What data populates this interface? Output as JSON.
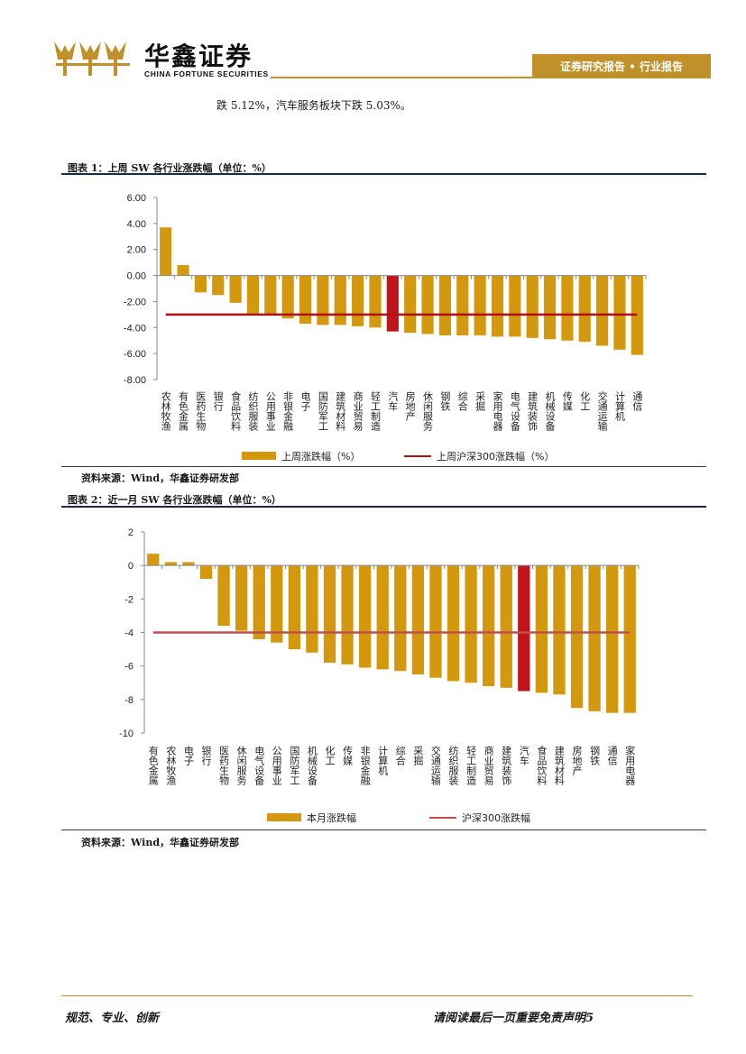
{
  "header": {
    "brand_cn": "华鑫证券",
    "brand_en": "CHINA FORTUNE SECURITIES",
    "tab_label": "证券研究报告 • 行业报告"
  },
  "intro_text": "跌 5.12%，汽车服务板块下跌 5.03%。",
  "figure1": {
    "title": "图表 1：上周 SW 各行业涨跌幅（单位：%）",
    "source": "资料来源：Wind，华鑫证券研发部"
  },
  "figure2": {
    "title": "图表 2：近一月 SW 各行业涨跌幅（单位：%）",
    "source": "资料来源：Wind，华鑫证券研发部"
  },
  "footer": {
    "left": "规范、专业、创新",
    "right": "请阅读最后一页重要免责声明",
    "page": "5"
  },
  "colors": {
    "bar": "#d4980f",
    "highlight": "#c0151b",
    "index_line_1": "#b01015",
    "index_line_2": "#c0504d",
    "accent": "#c0902a"
  },
  "chart_data": [
    {
      "type": "bar",
      "title": "上周 SW 各行业涨跌幅（单位：%）",
      "categories": [
        "农林牧渔",
        "有色金属",
        "医药生物",
        "银行",
        "食品饮料",
        "纺织服装",
        "公用事业",
        "非银金融",
        "电子",
        "国防军工",
        "建筑材料",
        "商业贸易",
        "轻工制造",
        "汽车",
        "房地产",
        "休闲服务",
        "钢铁",
        "综合",
        "采掘",
        "家用电器",
        "电气设备",
        "建筑装饰",
        "机械设备",
        "传媒",
        "化工",
        "交通运输",
        "计算机",
        "通信"
      ],
      "series": [
        {
          "name": "上周涨跌幅（%）",
          "type": "bar",
          "values": [
            3.7,
            0.8,
            -1.3,
            -1.5,
            -2.1,
            -3.0,
            -3.0,
            -3.3,
            -3.7,
            -3.8,
            -3.8,
            -3.9,
            -4.0,
            -4.3,
            -4.4,
            -4.5,
            -4.6,
            -4.6,
            -4.6,
            -4.7,
            -4.7,
            -4.8,
            -4.9,
            -5.0,
            -5.1,
            -5.4,
            -5.7,
            -6.1
          ]
        },
        {
          "name": "上周沪深300涨跌幅（%）",
          "type": "line",
          "value": -3.0
        }
      ],
      "highlight_category": "汽车",
      "ylim": [
        -8,
        6
      ],
      "yticks": [
        "6.00",
        "4.00",
        "2.00",
        "0.00",
        "-2.00",
        "-4.00",
        "-6.00",
        "-8.00"
      ],
      "legend_position": "bottom"
    },
    {
      "type": "bar",
      "title": "近一月 SW 各行业涨跌幅（单位：%）",
      "categories": [
        "有色金属",
        "农林牧渔",
        "电子",
        "银行",
        "医药生物",
        "休闲服务",
        "电气设备",
        "公用事业",
        "国防军工",
        "机械设备",
        "化工",
        "传媒",
        "非银金融",
        "计算机",
        "综合",
        "采掘",
        "交通运输",
        "纺织服装",
        "轻工制造",
        "商业贸易",
        "建筑装饰",
        "汽车",
        "食品饮料",
        "建筑材料",
        "房地产",
        "钢铁",
        "通信",
        "家用电器"
      ],
      "series": [
        {
          "name": "本月涨跌幅",
          "type": "bar",
          "values": [
            0.7,
            0.2,
            0.2,
            -0.8,
            -3.6,
            -3.9,
            -4.4,
            -4.6,
            -5.0,
            -5.2,
            -5.8,
            -5.9,
            -6.1,
            -6.2,
            -6.3,
            -6.5,
            -6.7,
            -6.9,
            -7.0,
            -7.2,
            -7.3,
            -7.5,
            -7.6,
            -7.7,
            -8.5,
            -8.7,
            -8.8,
            -8.8
          ]
        },
        {
          "name": "沪深300涨跌幅",
          "type": "line",
          "value": -4.0
        }
      ],
      "highlight_category": "汽车",
      "ylim": [
        -10,
        2
      ],
      "yticks": [
        "2",
        "0",
        "-2",
        "-4",
        "-6",
        "-8",
        "-10"
      ],
      "legend_position": "bottom"
    }
  ]
}
